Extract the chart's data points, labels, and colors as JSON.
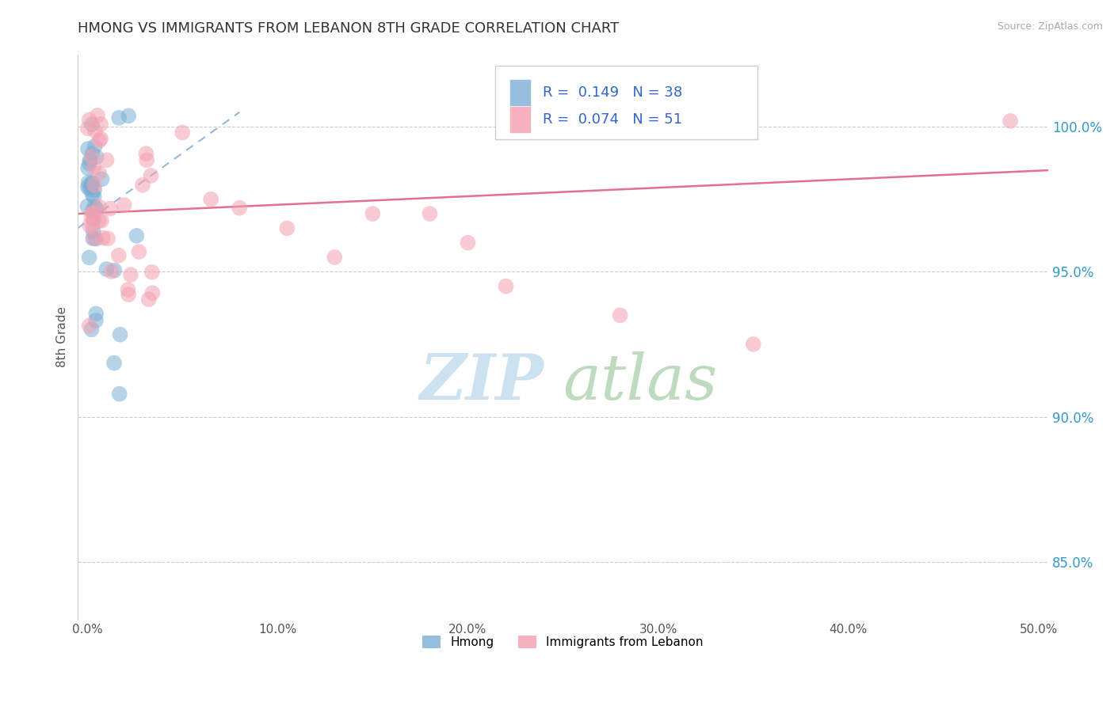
{
  "title": "HMONG VS IMMIGRANTS FROM LEBANON 8TH GRADE CORRELATION CHART",
  "source_text": "Source: ZipAtlas.com",
  "ylabel": "8th Grade",
  "xlim": [
    -0.5,
    50.5
  ],
  "ylim": [
    83.0,
    102.5
  ],
  "xticks": [
    0.0,
    10.0,
    20.0,
    30.0,
    40.0,
    50.0
  ],
  "xtick_labels": [
    "0.0%",
    "10.0%",
    "20.0%",
    "30.0%",
    "40.0%",
    "50.0%"
  ],
  "yticks": [
    85.0,
    90.0,
    95.0,
    100.0
  ],
  "ytick_labels": [
    "85.0%",
    "90.0%",
    "95.0%",
    "100.0%"
  ],
  "hmong_color": "#7bafd4",
  "lebanon_color": "#f4a0b0",
  "hmong_R": 0.149,
  "hmong_N": 38,
  "lebanon_R": 0.074,
  "lebanon_N": 51,
  "hmong_line_color": "#6699cc",
  "lebanon_line_color": "#e06080",
  "label_color": "#3366cc",
  "watermark_zip_color": "#c8dff0",
  "watermark_atlas_color": "#b8d8b8",
  "legend_color": "#3366cc",
  "tick_color": "#3399cc",
  "title_color": "#333333",
  "source_color": "#aaaaaa"
}
